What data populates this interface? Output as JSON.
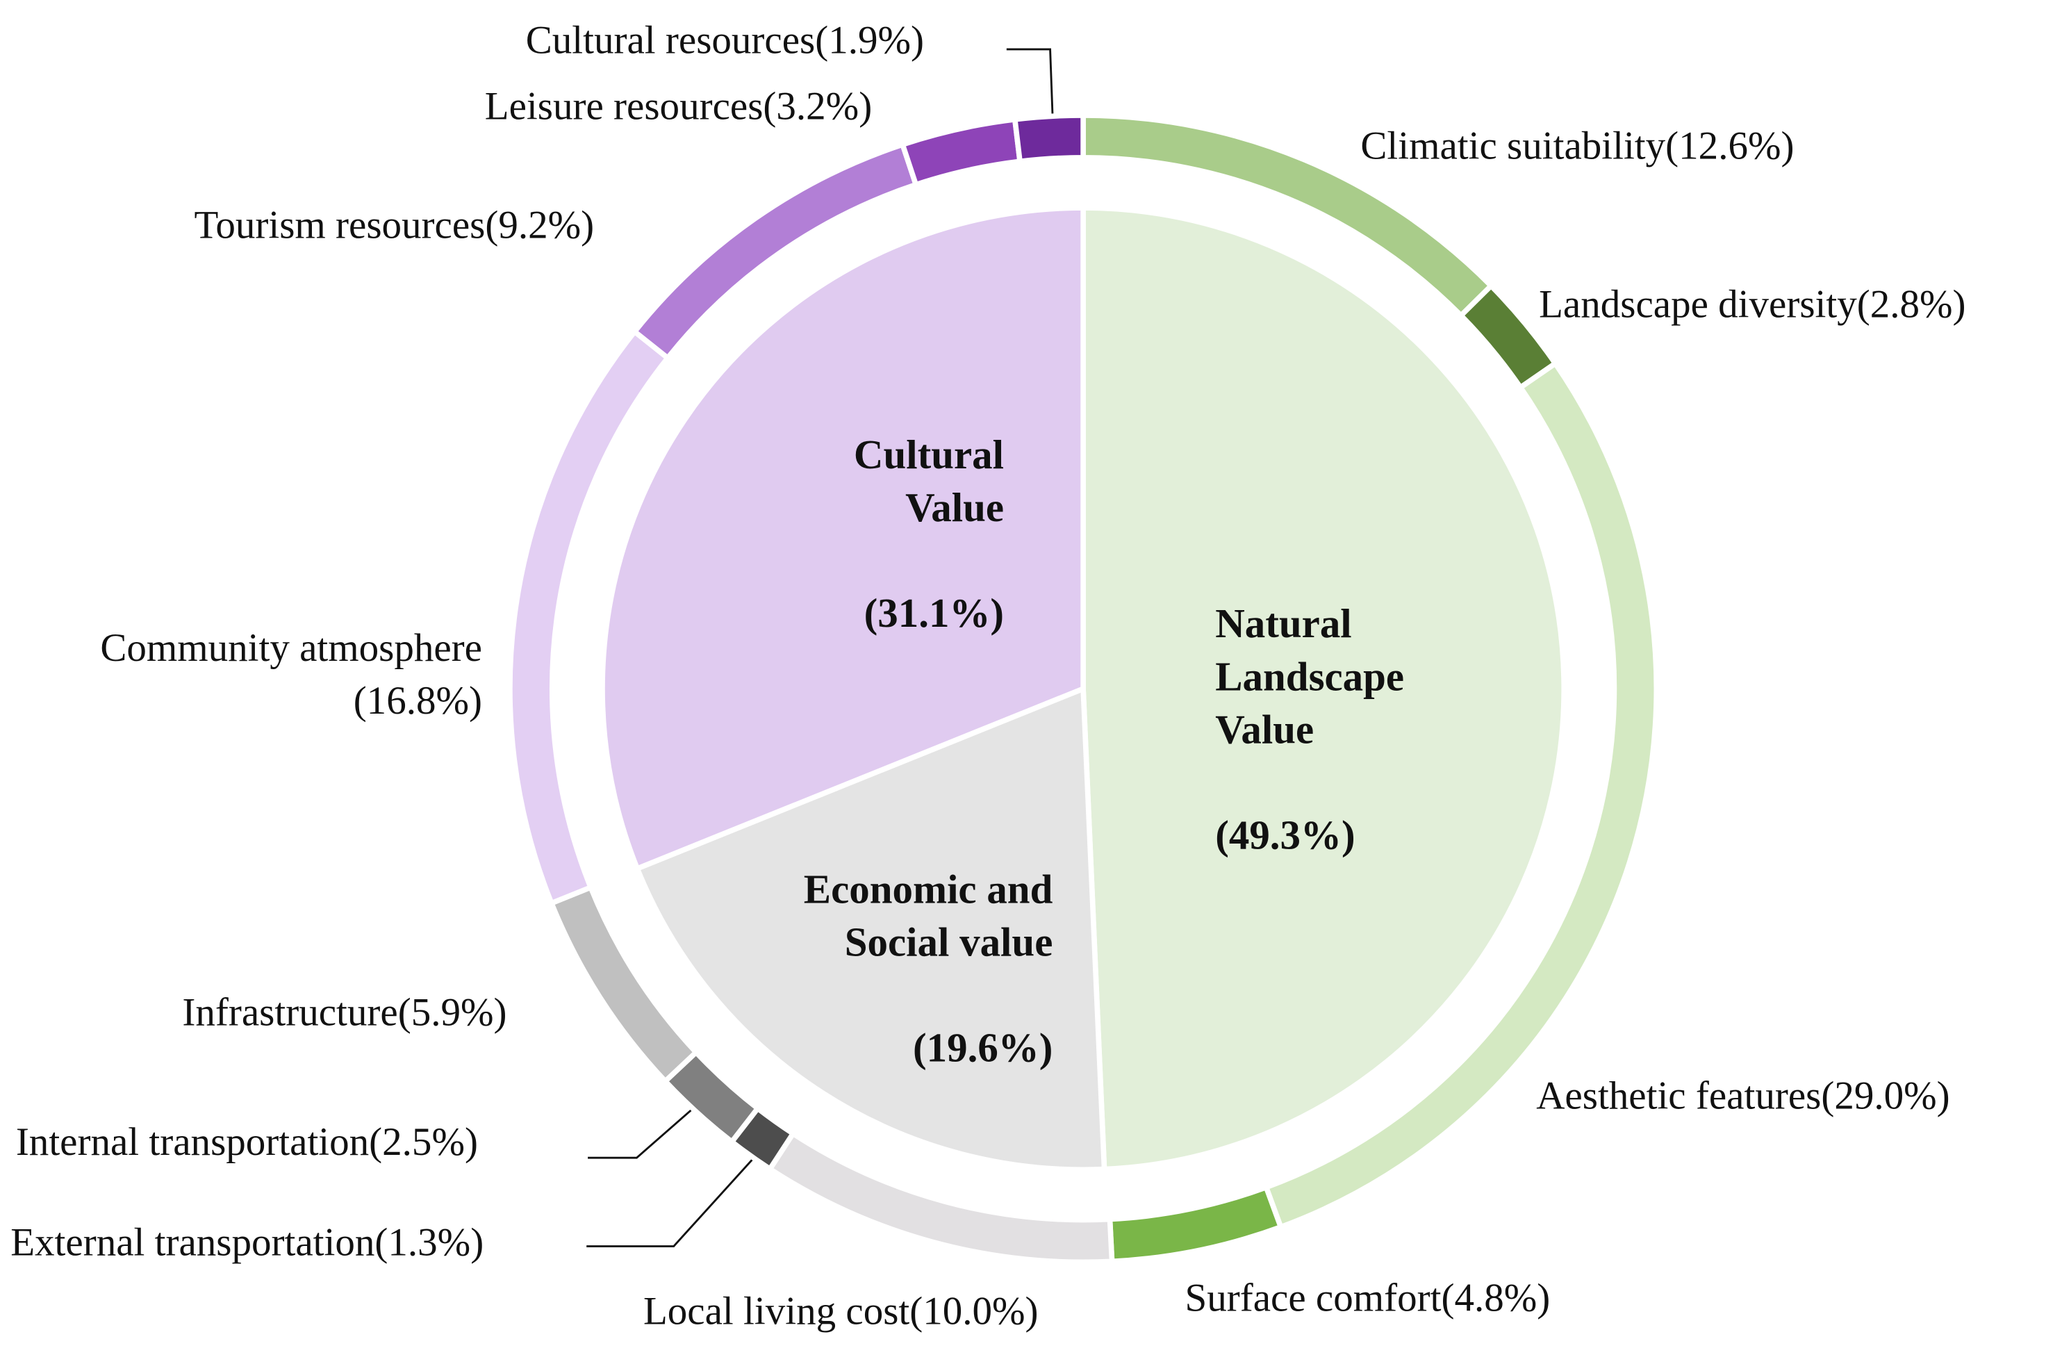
{
  "chart_data": [
    {
      "type": "pie",
      "categories": [
        [
          "Natural",
          "Landscape",
          "Value"
        ],
        [
          "Economic and",
          "Social value"
        ],
        [
          "Cultural",
          "Value"
        ]
      ],
      "values": [
        49.3,
        19.6,
        31.1
      ],
      "value_labels": [
        "(49.3%)",
        "(19.6%)",
        "(31.1%)"
      ],
      "colors": [
        "#e2efd9",
        "#e4e4e4",
        "#e0cbf0"
      ]
    },
    {
      "type": "donut",
      "categories": [
        "Climatic suitability",
        "Landscape diversity",
        "Aesthetic features",
        "Surface comfort",
        "Local living cost",
        "External transportation",
        "Internal transportation",
        "Infrastructure",
        "Community atmosphere",
        "Tourism resources",
        "Leisure resources",
        "Cultural resources"
      ],
      "values": [
        12.6,
        2.8,
        29.0,
        4.8,
        10.0,
        1.3,
        2.5,
        5.9,
        16.8,
        9.2,
        3.2,
        1.9
      ],
      "value_labels": [
        "(12.6%)",
        "(2.8%)",
        "(29.0%)",
        "(4.8%)",
        "(10.0%)",
        "(1.3%)",
        "(2.5%)",
        "(5.9%)",
        "(16.8%)",
        "(9.2%)",
        "(3.2%)",
        "(1.9%)"
      ],
      "colors": [
        "#a9cc8a",
        "#5a7f35",
        "#d4e9c2",
        "#7ab648",
        "#e2e0e2",
        "#4d4d4d",
        "#808080",
        "#c0c0c0",
        "#e3cff3",
        "#b27fd6",
        "#8e44b8",
        "#6e2a9c"
      ]
    }
  ]
}
